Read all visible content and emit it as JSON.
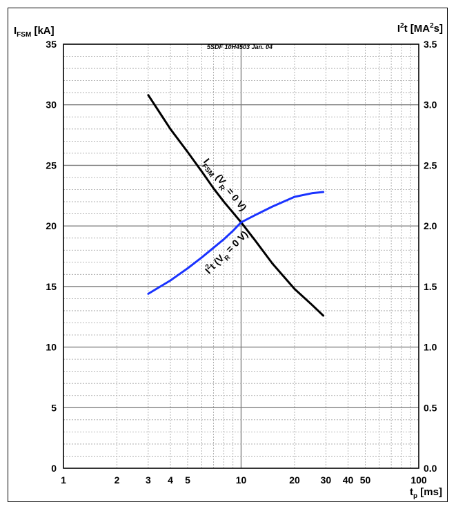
{
  "chart_data": {
    "type": "line",
    "reference": "5SDF 10H4503 Jan. 04",
    "xlabel": {
      "main": "t",
      "sub": "p",
      "unit": " [ms]"
    },
    "ylabel_left": {
      "main": "I",
      "sub": "FSM",
      "unit": " [kA]"
    },
    "ylabel_right": {
      "main": "I",
      "sup": "2",
      "rest": "t [MA",
      "sup2": "2",
      "tail": "s]"
    },
    "x_scale": "log",
    "xlim": [
      1,
      100
    ],
    "x_tick_labels": [
      "1",
      "2",
      "3",
      "4",
      "5",
      "10",
      "20",
      "30",
      "40",
      "50",
      "100"
    ],
    "ylim_left": [
      0,
      35
    ],
    "y_left_ticks": [
      "0",
      "5",
      "10",
      "15",
      "20",
      "25",
      "30",
      "35"
    ],
    "ylim_right": [
      0.0,
      3.5
    ],
    "y_right_ticks": [
      "0.0",
      "0.5",
      "1.0",
      "1.5",
      "2.0",
      "2.5",
      "3.0",
      "3.5"
    ],
    "grid": true,
    "series": [
      {
        "name": "I_FSM (V_R = 0 V)",
        "label_parts": [
          "I",
          "FSM",
          " (V",
          "R",
          " = 0 V)"
        ],
        "axis": "left",
        "color": "#000000",
        "x": [
          3,
          3.5,
          4,
          5,
          6,
          7,
          8,
          9,
          10,
          12,
          15,
          20,
          25,
          29
        ],
        "y": [
          30.8,
          29.3,
          28.0,
          26.1,
          24.5,
          23.1,
          22.0,
          21.1,
          20.3,
          18.8,
          16.9,
          14.8,
          13.5,
          12.6
        ]
      },
      {
        "name": "I²t (V_R = 0 V)",
        "label_parts": [
          "I",
          "2",
          "t (V",
          "R",
          " = 0 V)"
        ],
        "axis": "right",
        "color": "#1a33ff",
        "x": [
          3,
          4,
          5,
          6,
          7,
          8,
          9,
          10,
          12,
          15,
          20,
          25,
          29
        ],
        "y": [
          1.44,
          1.55,
          1.65,
          1.74,
          1.82,
          1.89,
          1.96,
          2.03,
          2.09,
          2.16,
          2.24,
          2.27,
          2.28
        ]
      }
    ]
  }
}
